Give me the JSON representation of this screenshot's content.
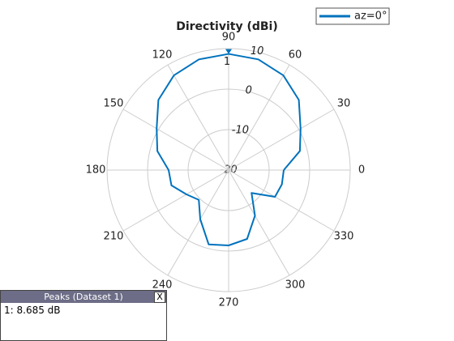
{
  "chart_data": {
    "type": "polar",
    "title": "Directivity (dBi)",
    "x": [
      0,
      15,
      30,
      45,
      60,
      75,
      90,
      105,
      120,
      135,
      150,
      165,
      180,
      195,
      210,
      225,
      240,
      255,
      270,
      285,
      300,
      315,
      330,
      345,
      360
    ],
    "series": [
      {
        "name": "az=0°",
        "color": "#0072bd",
        "values": [
          -6.4,
          -1.8,
          0.5,
          4.5,
          7.0,
          8.3,
          8.685,
          8.3,
          7.0,
          4.5,
          0.5,
          -1.8,
          -5.2,
          -5.4,
          -8,
          -9.6,
          -6,
          -1,
          -1.4,
          -2.4,
          -7,
          -12,
          -6.8,
          -6.4,
          -6.4
        ]
      }
    ],
    "rlim": [
      -20,
      10
    ],
    "rticks": [
      -20,
      -10,
      0,
      10
    ],
    "thetaticks": [
      0,
      30,
      60,
      90,
      120,
      150,
      180,
      210,
      240,
      270,
      300,
      330
    ],
    "peak_label": "1",
    "grid": true,
    "legend": "upper right"
  },
  "peaks_panel": {
    "title": "Peaks (Dataset 1)",
    "close": "X",
    "rows": [
      "1: 8.685 dB"
    ]
  }
}
